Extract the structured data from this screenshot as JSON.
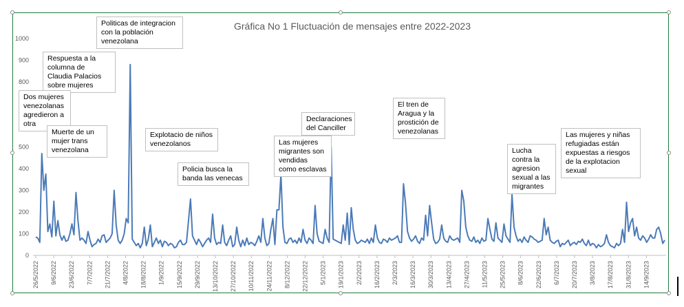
{
  "chart_data": {
    "type": "line",
    "title": "Gráfica No 1 Fluctuación de mensajes entre 2022-2023",
    "xlabel": "",
    "ylabel": "",
    "ylim": [
      0,
      1000
    ],
    "yticks": [
      0,
      100,
      200,
      300,
      400,
      500,
      600,
      700,
      800,
      900,
      1000
    ],
    "grid": false,
    "legend": "none",
    "line_color": "#4a7ab8",
    "x_tick_labels": [
      "26/5/2022",
      "9/6/2022",
      "23/6/2022",
      "7/7/2022",
      "21/7/2022",
      "4/8/2022",
      "18/8/2022",
      "1/9/2022",
      "15/9/2022",
      "29/9/2022",
      "13/10/2022",
      "27/10/2022",
      "10/11/2022",
      "24/11/2022",
      "8/12/2022",
      "22/12/2022",
      "5/1/2023",
      "19/1/2023",
      "2/2/2023",
      "16/2/2023",
      "2/3/2023",
      "16/3/2023",
      "30/3/2023",
      "13/4/2023",
      "27/4/2023",
      "11/5/2023",
      "25/5/2023",
      "8/6/2023",
      "22/6/2023",
      "6/7/2023",
      "20/7/2023",
      "3/8/2023",
      "17/8/2023",
      "31/8/2023",
      "14/9/2023"
    ],
    "series": [
      {
        "x_start": "26/5/2022",
        "values": [
          85,
          80,
          60,
          470,
          300,
          375,
          110,
          145,
          85,
          250,
          90,
          160,
          95,
          70,
          90,
          65,
          70,
          100,
          145,
          95,
          290,
          160,
          70,
          80,
          70,
          55,
          110,
          70,
          40,
          50,
          55,
          75,
          60,
          90,
          95,
          60,
          70,
          80,
          100,
          300,
          140,
          70,
          55,
          70,
          100,
          170,
          150,
          880,
          75,
          60,
          45,
          55,
          35,
          55,
          130,
          45,
          75,
          140,
          40,
          60,
          80,
          55,
          70,
          40,
          65,
          60,
          45,
          55,
          50,
          35,
          40,
          60,
          70,
          50,
          50,
          60,
          160,
          260,
          90,
          70,
          50,
          75,
          60,
          40,
          55,
          70,
          80,
          60,
          190,
          80,
          50,
          60,
          55,
          140,
          60,
          45,
          70,
          90,
          40,
          50,
          130,
          70,
          40,
          70,
          45,
          80,
          50,
          60,
          55,
          45,
          65,
          90,
          60,
          170,
          80,
          45,
          55,
          120,
          170,
          50,
          210,
          210,
          375,
          130,
          60,
          55,
          75,
          80,
          60,
          70,
          55,
          80,
          60,
          120,
          70,
          55,
          80,
          70,
          55,
          230,
          100,
          65,
          60,
          55,
          120,
          80,
          60,
          500,
          75,
          70,
          65,
          60,
          55,
          140,
          70,
          195,
          50,
          220,
          120,
          70,
          55,
          60,
          70,
          65,
          60,
          75,
          55,
          80,
          60,
          140,
          80,
          60,
          55,
          75,
          70,
          60,
          80,
          70,
          75,
          80,
          90,
          60,
          60,
          330,
          240,
          110,
          80,
          65,
          75,
          90,
          65,
          55,
          80,
          70,
          185,
          90,
          230,
          150,
          75,
          55,
          60,
          75,
          140,
          80,
          65,
          60,
          90,
          75,
          70,
          75,
          80,
          60,
          300,
          250,
          130,
          90,
          70,
          65,
          85,
          60,
          70,
          55,
          80,
          65,
          70,
          170,
          120,
          75,
          65,
          150,
          80,
          70,
          60,
          145,
          90,
          75,
          60,
          280,
          130,
          90,
          65,
          75,
          60,
          85,
          70,
          60,
          90,
          85,
          75,
          70,
          60,
          65,
          70,
          170,
          95,
          130,
          70,
          60,
          55,
          65,
          70,
          40,
          55,
          50,
          60,
          70,
          45,
          55,
          60,
          50,
          65,
          60,
          75,
          55,
          45,
          70,
          45,
          55,
          50,
          35,
          50,
          40,
          45,
          55,
          95,
          60,
          45,
          40,
          35,
          55,
          45,
          55,
          120,
          60,
          245,
          110,
          150,
          170,
          90,
          130,
          80,
          70,
          90,
          80,
          60,
          75,
          95,
          80,
          80,
          120,
          130,
          100,
          55,
          70
        ]
      }
    ],
    "annotations": [
      "Politicas de integracion con la población venezolana",
      "Respuesta a la columna de Claudia Palacios sobre mujeres",
      "Dos mujeres venezolanas agredieron a otra",
      "Muerte de un mujer trans venezolana",
      "Explotacio de niños venezolanos",
      "Policia busca la banda las venecas",
      "Declaraciones del Canciller",
      "Las mujeres migrantes son vendidas como esclavas",
      "El tren de Aragua y la prostición de venezolanas",
      "Lucha contra la agresion sexual a las migrantes",
      "Las mujeres y niñas refugiadas están expuestas a riesgos de la explotacion sexual"
    ]
  }
}
